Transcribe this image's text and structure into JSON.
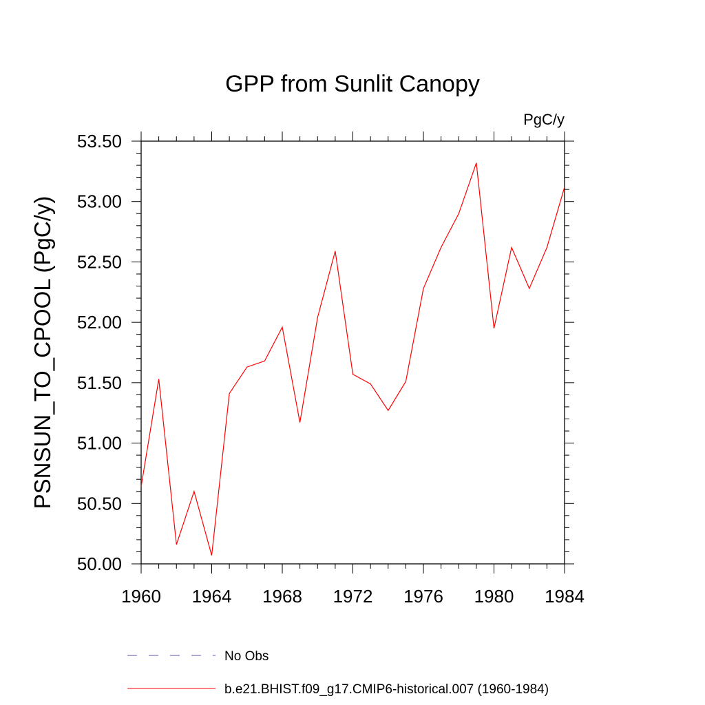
{
  "chart_data": {
    "type": "line",
    "title": "GPP from Sunlit Canopy",
    "units": "PgC/y",
    "ylabel": "PSNSUN_TO_CPOOL  (PgC/y)",
    "xlabel": "",
    "xlim": [
      1960,
      1984
    ],
    "ylim": [
      50.0,
      53.5
    ],
    "xticks": [
      "1960",
      "1964",
      "1968",
      "1972",
      "1976",
      "1980",
      "1984"
    ],
    "yticks": [
      "50.00",
      "50.50",
      "51.00",
      "51.50",
      "52.00",
      "52.50",
      "53.00",
      "53.50"
    ],
    "grid": false,
    "legend_position": "bottom",
    "series": [
      {
        "name": "b.e21.BHIST.f09_g17.CMIP6-historical.007 (1960-1984)",
        "color": "#ff0000",
        "dash": "solid",
        "x": [
          1960,
          1961,
          1962,
          1963,
          1964,
          1965,
          1966,
          1967,
          1968,
          1969,
          1970,
          1971,
          1972,
          1973,
          1974,
          1975,
          1976,
          1977,
          1978,
          1979,
          1980,
          1981,
          1982,
          1983,
          1984
        ],
        "values": [
          50.64,
          51.53,
          50.16,
          50.6,
          50.07,
          51.41,
          51.63,
          51.68,
          51.96,
          51.17,
          52.04,
          52.59,
          51.57,
          51.49,
          51.27,
          51.51,
          52.28,
          52.62,
          52.9,
          53.32,
          51.95,
          52.62,
          52.28,
          52.62,
          53.12
        ]
      }
    ],
    "legend": [
      {
        "label": "No Obs",
        "color": "#5555aa",
        "dash": "dashed"
      },
      {
        "label": "b.e21.BHIST.f09_g17.CMIP6-historical.007 (1960-1984)",
        "color": "#ff0000",
        "dash": "solid"
      }
    ]
  }
}
